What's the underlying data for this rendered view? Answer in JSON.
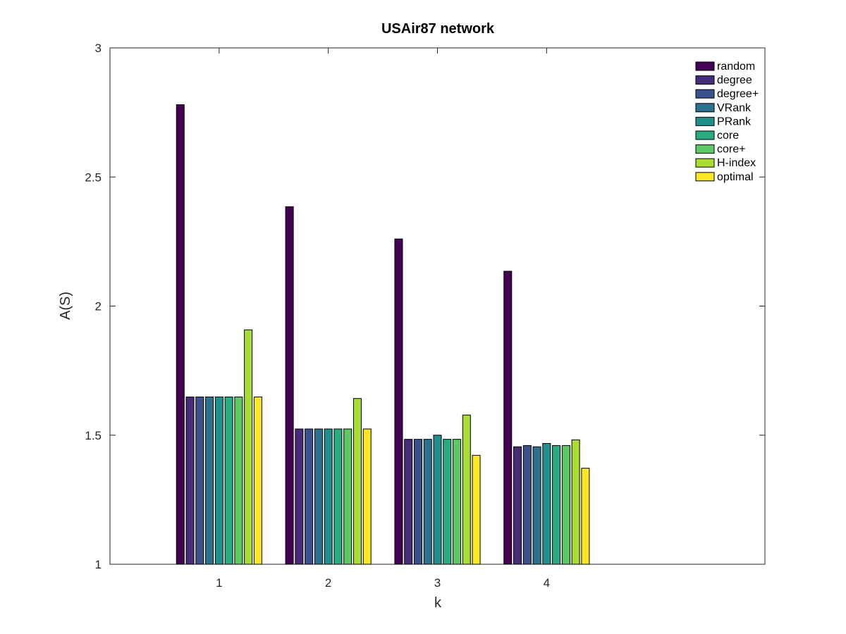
{
  "chart_data": {
    "type": "bar",
    "title": "USAir87 network",
    "xlabel": "k",
    "ylabel": "A(S)",
    "categories": [
      "1",
      "2",
      "3",
      "4"
    ],
    "xlim": [
      0.0,
      6.0
    ],
    "ylim": [
      1,
      3
    ],
    "yticks": [
      "1",
      "1.5",
      "2",
      "2.5",
      "3"
    ],
    "legend_position": "top-right",
    "grid": false,
    "series": [
      {
        "name": "random",
        "color": "#440154",
        "values": [
          2.78,
          2.385,
          2.26,
          2.135
        ]
      },
      {
        "name": "degree",
        "color": "#472c7a",
        "values": [
          1.648,
          1.524,
          1.484,
          1.455
        ]
      },
      {
        "name": "degree+",
        "color": "#3b518b",
        "values": [
          1.648,
          1.524,
          1.484,
          1.46
        ]
      },
      {
        "name": "VRank",
        "color": "#2c718e",
        "values": [
          1.648,
          1.524,
          1.484,
          1.455
        ]
      },
      {
        "name": "PRank",
        "color": "#21908d",
        "values": [
          1.648,
          1.524,
          1.5,
          1.468
        ]
      },
      {
        "name": "core",
        "color": "#27ad81",
        "values": [
          1.648,
          1.524,
          1.484,
          1.46
        ]
      },
      {
        "name": "core+",
        "color": "#5cc863",
        "values": [
          1.648,
          1.524,
          1.484,
          1.46
        ]
      },
      {
        "name": "H-index",
        "color": "#aadc32",
        "values": [
          1.908,
          1.642,
          1.578,
          1.482
        ]
      },
      {
        "name": "optimal",
        "color": "#fde725",
        "values": [
          1.648,
          1.524,
          1.422,
          1.372
        ]
      }
    ]
  }
}
